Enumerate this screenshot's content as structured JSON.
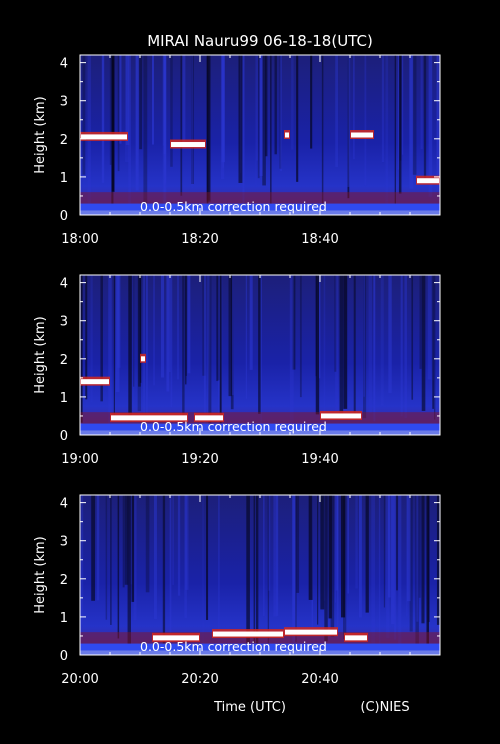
{
  "title": "MIRAI Nauru99 06-18-18(UTC)",
  "xlabel": "Time (UTC)",
  "credit": "(C)NIES",
  "colors": {
    "background": "#000000",
    "text": "#ffffff"
  },
  "chart_data": [
    {
      "type": "heatmap",
      "ylabel": "Height (km)",
      "ylim": [
        0,
        4.2
      ],
      "yticks": [
        "0",
        "1",
        "2",
        "3",
        "4"
      ],
      "xlim": [
        "18:00",
        "19:00"
      ],
      "xticks": [
        "18:00",
        "18:20",
        "18:40"
      ],
      "annotation": "0.0-0.5km correction required",
      "cloud_layers": [
        {
          "start_min": 0,
          "end_min": 8,
          "height_km": 2.05
        },
        {
          "start_min": 15,
          "end_min": 21,
          "height_km": 1.85
        },
        {
          "start_min": 34,
          "end_min": 35,
          "height_km": 2.1
        },
        {
          "start_min": 45,
          "end_min": 49,
          "height_km": 2.1
        },
        {
          "start_min": 56,
          "end_min": 60,
          "height_km": 0.9
        }
      ]
    },
    {
      "type": "heatmap",
      "ylabel": "Height (km)",
      "ylim": [
        0,
        4.2
      ],
      "yticks": [
        "0",
        "1",
        "2",
        "3",
        "4"
      ],
      "xlim": [
        "19:00",
        "20:00"
      ],
      "xticks": [
        "19:00",
        "19:20",
        "19:40"
      ],
      "annotation": "0.0-0.5km correction required",
      "cloud_layers": [
        {
          "start_min": 0,
          "end_min": 5,
          "height_km": 1.4
        },
        {
          "start_min": 5,
          "end_min": 18,
          "height_km": 0.45
        },
        {
          "start_min": 10,
          "end_min": 11,
          "height_km": 2.0
        },
        {
          "start_min": 19,
          "end_min": 24,
          "height_km": 0.45
        },
        {
          "start_min": 40,
          "end_min": 47,
          "height_km": 0.5
        }
      ]
    },
    {
      "type": "heatmap",
      "ylabel": "Height (km)",
      "ylim": [
        0,
        4.2
      ],
      "yticks": [
        "0",
        "1",
        "2",
        "3",
        "4"
      ],
      "xlim": [
        "20:00",
        "21:00"
      ],
      "xticks": [
        "20:00",
        "20:20",
        "20:40"
      ],
      "annotation": "0.0-0.5km correction required",
      "cloud_layers": [
        {
          "start_min": 12,
          "end_min": 20,
          "height_km": 0.45
        },
        {
          "start_min": 22,
          "end_min": 34,
          "height_km": 0.55
        },
        {
          "start_min": 34,
          "end_min": 43,
          "height_km": 0.6
        },
        {
          "start_min": 44,
          "end_min": 48,
          "height_km": 0.45
        }
      ]
    }
  ]
}
